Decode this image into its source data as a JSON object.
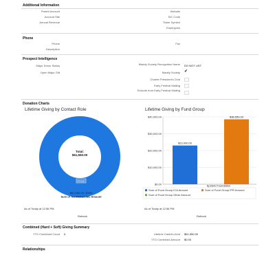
{
  "sections": {
    "additional": "Additional Information",
    "phone": "Phone",
    "prospect": "Prospect Intelligence",
    "donation": "Donation Charts",
    "combined": "Combined (Hard + Soft) Giving Summary",
    "relationships": "Relationships"
  },
  "additional": {
    "left_labels": [
      "Parent Account",
      "Account Site",
      "Annual Revenue"
    ],
    "right_labels": [
      "Website",
      "SIC Code",
      "Ticker Symbol",
      "Employees"
    ]
  },
  "phone": {
    "left_labels": [
      "Phone",
      "Description"
    ],
    "right_labels": [
      "Fax"
    ]
  },
  "prospect": {
    "left_labels": [
      "Major Donor Status",
      "Open Major Gift"
    ],
    "right_labels": [
      "Maddy Society Recognition Name",
      "Maddy Society",
      "Charter President's Club",
      "Early Festival Mailing",
      "Exclude from Early Festival Mailing"
    ],
    "recognition_value": "DO NOT LIST",
    "maddy_check": "✔"
  },
  "donut": {
    "title": "Lifetime Giving by Contact Role",
    "center_label": "Total:",
    "center_value": "$61,550.00",
    "slice_label": "Donor",
    "footer_line1": "$61,550.00: 100%",
    "footer_line2": "Sum of Tax-Deductible Amount",
    "as_of": "As of Today at 12:56 PM",
    "refresh": "Refresh"
  },
  "chart_data": {
    "type": "bar",
    "title": "Lifetime Giving by Fund Group",
    "categories": [
      "Epstein Foundation"
    ],
    "series": [
      {
        "name": "Sum of Fund Group ICA Amount",
        "values": [
          23000
        ],
        "label": "$23,000.00",
        "color": "#1f6fd6"
      },
      {
        "name": "Sum of Fund Group IPR Amount",
        "values": [
          38550
        ],
        "label": "$38,550.00",
        "color": "#e27a10"
      },
      {
        "name": "Sum of Fund Group Other Amount",
        "values": [
          0
        ],
        "label": "",
        "color": "#57b35a"
      }
    ],
    "yticks": [
      "$0.00",
      "$10,000.00",
      "$20,000.00",
      "$30,000.00",
      "$40,000.00"
    ],
    "ylim": [
      0,
      40000
    ],
    "as_of": "As of Today at 12:56 PM",
    "refresh": "Refresh"
  },
  "combined": {
    "ytd_label": "YTD Combined Count",
    "ytd_value": "0",
    "lifetime_label": "Lifetime Cash/In-Kind",
    "lifetime_value": "$61,550.00",
    "ytd_amount_label": "YTD Combined Amount",
    "ytd_amount_value": "$0.00"
  },
  "colors": {
    "donut": "#1f78e0",
    "grid": "#e3e3e3"
  }
}
